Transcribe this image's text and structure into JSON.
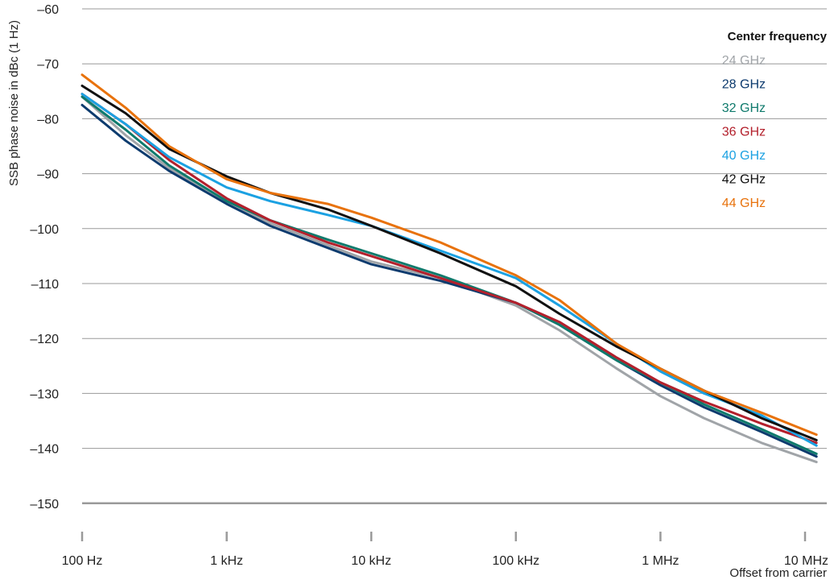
{
  "chart_data": {
    "type": "line",
    "x_scale": "log",
    "y_label": "SSB phase noise in dBc (1 Hz)",
    "x_label": "Offset from carrier",
    "x_ticks": [
      {
        "value": 100,
        "label": "100 Hz"
      },
      {
        "value": 1000,
        "label": "1 kHz"
      },
      {
        "value": 10000,
        "label": "10 kHz"
      },
      {
        "value": 100000,
        "label": "100 kHz"
      },
      {
        "value": 1000000,
        "label": "1 MHz"
      },
      {
        "value": 10000000,
        "label": "10 MHz"
      }
    ],
    "y_ticks": [
      {
        "value": -60,
        "label": "–60"
      },
      {
        "value": -70,
        "label": "–70"
      },
      {
        "value": -80,
        "label": "–80"
      },
      {
        "value": -90,
        "label": "–90"
      },
      {
        "value": -100,
        "label": "–100"
      },
      {
        "value": -110,
        "label": "–110"
      },
      {
        "value": -120,
        "label": "–120"
      },
      {
        "value": -130,
        "label": "–130"
      },
      {
        "value": -140,
        "label": "–140"
      },
      {
        "value": -150,
        "label": "–150"
      }
    ],
    "xlim": [
      100,
      12000000
    ],
    "ylim": [
      -150,
      -60
    ],
    "grid": "horizontal",
    "legend_title": "Center frequency",
    "legend_position": "right",
    "series": [
      {
        "name": "24 GHz",
        "color": "#a0a4a8",
        "points": [
          [
            100,
            -76
          ],
          [
            200,
            -83
          ],
          [
            400,
            -89
          ],
          [
            1000,
            -95
          ],
          [
            2000,
            -99
          ],
          [
            5000,
            -103
          ],
          [
            10000,
            -106
          ],
          [
            30000,
            -109
          ],
          [
            100000,
            -114
          ],
          [
            200000,
            -118.5
          ],
          [
            500000,
            -125.5
          ],
          [
            1000000,
            -130.5
          ],
          [
            2000000,
            -134.5
          ],
          [
            5000000,
            -139
          ],
          [
            12000000,
            -142.5
          ]
        ]
      },
      {
        "name": "28 GHz",
        "color": "#0d3b6e",
        "points": [
          [
            100,
            -77.5
          ],
          [
            200,
            -84
          ],
          [
            400,
            -89.5
          ],
          [
            1000,
            -95.5
          ],
          [
            2000,
            -99.5
          ],
          [
            5000,
            -103.5
          ],
          [
            10000,
            -106.5
          ],
          [
            30000,
            -109.5
          ],
          [
            100000,
            -113.5
          ],
          [
            200000,
            -117.5
          ],
          [
            500000,
            -124
          ],
          [
            1000000,
            -128.5
          ],
          [
            2000000,
            -132.5
          ],
          [
            5000000,
            -137
          ],
          [
            12000000,
            -141.5
          ]
        ]
      },
      {
        "name": "32 GHz",
        "color": "#0f7a6c",
        "points": [
          [
            100,
            -76
          ],
          [
            200,
            -82
          ],
          [
            400,
            -88.5
          ],
          [
            1000,
            -95
          ],
          [
            2000,
            -98.5
          ],
          [
            5000,
            -102
          ],
          [
            10000,
            -104.5
          ],
          [
            30000,
            -108.5
          ],
          [
            100000,
            -113.5
          ],
          [
            200000,
            -117.5
          ],
          [
            500000,
            -124
          ],
          [
            1000000,
            -128
          ],
          [
            2000000,
            -132
          ],
          [
            5000000,
            -136.5
          ],
          [
            12000000,
            -141
          ]
        ]
      },
      {
        "name": "36 GHz",
        "color": "#b3202c",
        "points": [
          [
            100,
            -75.5
          ],
          [
            200,
            -81
          ],
          [
            400,
            -87.5
          ],
          [
            1000,
            -94.5
          ],
          [
            2000,
            -98.5
          ],
          [
            5000,
            -102.5
          ],
          [
            10000,
            -105
          ],
          [
            30000,
            -109
          ],
          [
            100000,
            -113.5
          ],
          [
            200000,
            -117
          ],
          [
            500000,
            -123.5
          ],
          [
            1000000,
            -128
          ],
          [
            2000000,
            -131.5
          ],
          [
            5000000,
            -135.5
          ],
          [
            12000000,
            -139
          ]
        ]
      },
      {
        "name": "40 GHz",
        "color": "#1ba1e2",
        "points": [
          [
            100,
            -75.5
          ],
          [
            200,
            -81
          ],
          [
            400,
            -87
          ],
          [
            1000,
            -92.5
          ],
          [
            2000,
            -95
          ],
          [
            5000,
            -97.5
          ],
          [
            10000,
            -99.5
          ],
          [
            30000,
            -104
          ],
          [
            100000,
            -109
          ],
          [
            200000,
            -114
          ],
          [
            500000,
            -121
          ],
          [
            1000000,
            -126
          ],
          [
            2000000,
            -130
          ],
          [
            5000000,
            -134
          ],
          [
            12000000,
            -139.5
          ]
        ]
      },
      {
        "name": "42 GHz",
        "color": "#111111",
        "points": [
          [
            100,
            -74
          ],
          [
            200,
            -79
          ],
          [
            400,
            -85.5
          ],
          [
            1000,
            -90.5
          ],
          [
            2000,
            -93.5
          ],
          [
            5000,
            -96.5
          ],
          [
            10000,
            -99.5
          ],
          [
            30000,
            -104.5
          ],
          [
            100000,
            -110.5
          ],
          [
            200000,
            -115.5
          ],
          [
            500000,
            -121.5
          ],
          [
            1000000,
            -125.5
          ],
          [
            2000000,
            -129.5
          ],
          [
            5000000,
            -134.5
          ],
          [
            12000000,
            -138.5
          ]
        ]
      },
      {
        "name": "44 GHz",
        "color": "#e8720c",
        "points": [
          [
            100,
            -72
          ],
          [
            200,
            -78
          ],
          [
            400,
            -85
          ],
          [
            1000,
            -91
          ],
          [
            2000,
            -93.5
          ],
          [
            5000,
            -95.5
          ],
          [
            10000,
            -98
          ],
          [
            30000,
            -102.5
          ],
          [
            100000,
            -108.5
          ],
          [
            200000,
            -113
          ],
          [
            500000,
            -121
          ],
          [
            1000000,
            -125.5
          ],
          [
            2000000,
            -129.5
          ],
          [
            5000000,
            -133.5
          ],
          [
            12000000,
            -137.5
          ]
        ]
      }
    ]
  }
}
